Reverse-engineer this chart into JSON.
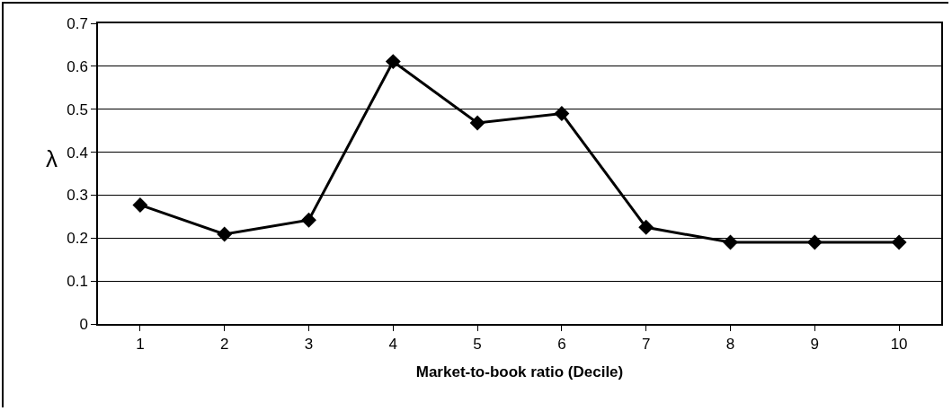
{
  "chart_data": {
    "type": "line",
    "xlabel": "Market-to-book ratio (Decile)",
    "ylabel": "λ",
    "categories": [
      "1",
      "2",
      "3",
      "4",
      "5",
      "6",
      "7",
      "8",
      "9",
      "10"
    ],
    "series": [
      {
        "color": "#000000",
        "values": [
          0.277,
          0.209,
          0.242,
          0.611,
          0.468,
          0.49,
          0.225,
          0.19,
          0.19,
          0.19
        ]
      }
    ],
    "ylim": [
      0,
      0.7
    ],
    "yticks": [
      0,
      0.1,
      0.2,
      0.3,
      0.4,
      0.5,
      0.6,
      0.7
    ],
    "grid": "y",
    "marker": "diamond",
    "line_style": "solid"
  }
}
